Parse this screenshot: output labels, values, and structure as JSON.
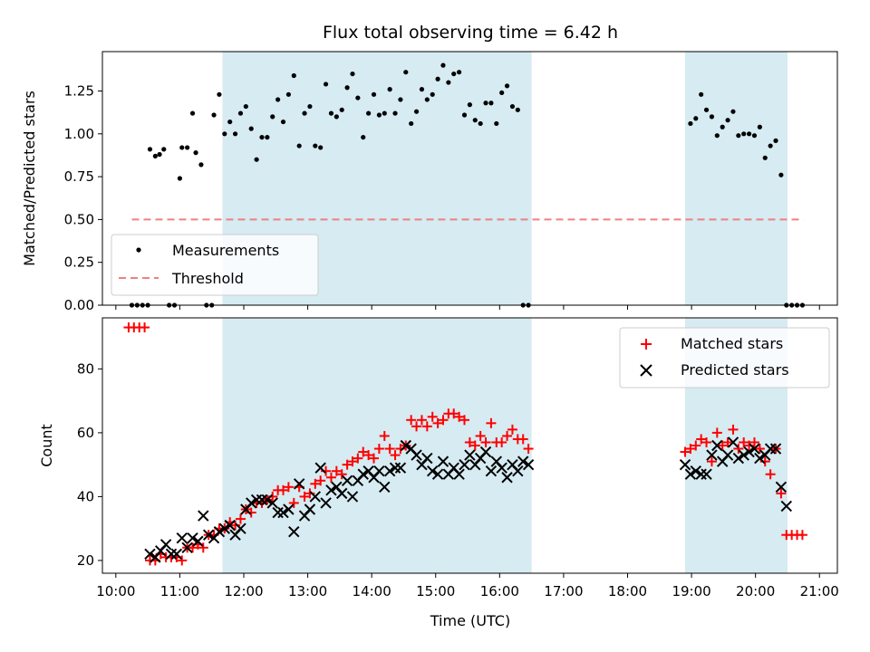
{
  "chart_data": {
    "type": "scatter",
    "title": "Flux total observing time = 6.42 h",
    "xlabel": "Time (UTC)",
    "x_ticks": [
      "10:00",
      "11:00",
      "12:00",
      "13:00",
      "14:00",
      "15:00",
      "16:00",
      "17:00",
      "18:00",
      "19:00",
      "20:00",
      "21:00"
    ],
    "xlim_hours": [
      9.79,
      21.28
    ],
    "shaded_intervals": [
      [
        "11:40",
        "16:30"
      ],
      [
        "18:54",
        "20:30"
      ]
    ],
    "shade_color": "#add8e6",
    "top": {
      "ylabel": "Matched/Predicted stars",
      "ylim": [
        0,
        1.48
      ],
      "y_ticks": [
        "0.00",
        "0.25",
        "0.50",
        "0.75",
        "1.00",
        "1.25"
      ],
      "threshold": 0.5,
      "threshold_color": "#f08080",
      "legend": {
        "position": "lower-left",
        "entries": [
          "Measurements",
          "Threshold"
        ]
      },
      "measurements": {
        "name": "Measurements",
        "color": "#000000",
        "x": [
          "10:15",
          "10:20",
          "10:25",
          "10:30",
          "10:32",
          "10:37",
          "10:41",
          "10:45",
          "10:50",
          "10:55",
          "11:00",
          "11:02",
          "11:07",
          "11:12",
          "11:15",
          "11:20",
          "11:25",
          "11:30",
          "11:32",
          "11:37",
          "11:42",
          "11:47",
          "11:52",
          "11:57",
          "12:02",
          "12:07",
          "12:12",
          "12:17",
          "12:22",
          "12:27",
          "12:32",
          "12:37",
          "12:42",
          "12:47",
          "12:52",
          "12:57",
          "13:02",
          "13:07",
          "13:12",
          "13:17",
          "13:22",
          "13:27",
          "13:32",
          "13:37",
          "13:42",
          "13:47",
          "13:52",
          "13:57",
          "14:02",
          "14:07",
          "14:12",
          "14:17",
          "14:22",
          "14:27",
          "14:32",
          "14:37",
          "14:42",
          "14:47",
          "14:52",
          "14:57",
          "15:02",
          "15:07",
          "15:12",
          "15:17",
          "15:22",
          "15:27",
          "15:32",
          "15:37",
          "15:42",
          "15:47",
          "15:52",
          "15:57",
          "16:02",
          "16:07",
          "16:12",
          "16:17",
          "16:22",
          "16:27",
          "18:59",
          "19:04",
          "19:09",
          "19:14",
          "19:19",
          "19:24",
          "19:29",
          "19:34",
          "19:39",
          "19:44",
          "19:49",
          "19:54",
          "19:59",
          "20:04",
          "20:09",
          "20:14",
          "20:19",
          "20:24",
          "20:29",
          "20:34",
          "20:39",
          "20:44"
        ],
        "y": [
          0.0,
          0.0,
          0.0,
          0.0,
          0.91,
          0.87,
          0.88,
          0.91,
          0.0,
          0.0,
          0.74,
          0.92,
          0.92,
          1.12,
          0.89,
          0.82,
          0.0,
          0.0,
          1.11,
          1.23,
          1.0,
          1.07,
          1.0,
          1.12,
          1.16,
          1.03,
          0.85,
          0.98,
          0.98,
          1.1,
          1.2,
          1.07,
          1.23,
          1.34,
          0.93,
          1.12,
          1.16,
          0.93,
          0.92,
          1.29,
          1.12,
          1.1,
          1.14,
          1.27,
          1.35,
          1.21,
          0.98,
          1.12,
          1.23,
          1.11,
          1.12,
          1.26,
          1.12,
          1.2,
          1.36,
          1.06,
          1.13,
          1.26,
          1.2,
          1.23,
          1.32,
          1.4,
          1.3,
          1.35,
          1.36,
          1.11,
          1.17,
          1.08,
          1.06,
          1.18,
          1.18,
          1.06,
          1.24,
          1.28,
          1.16,
          1.14,
          0.0,
          0.0,
          1.06,
          1.09,
          1.23,
          1.14,
          1.1,
          0.99,
          1.04,
          1.08,
          1.13,
          0.99,
          1.0,
          1.0,
          0.99,
          1.04,
          0.86,
          0.93,
          0.96,
          0.76,
          0.0,
          0.0,
          0.0,
          0.0
        ]
      }
    },
    "bottom": {
      "ylabel": "Count",
      "ylim": [
        16,
        96
      ],
      "y_ticks": [
        "20",
        "40",
        "60",
        "80"
      ],
      "legend": {
        "position": "top-right",
        "entries": [
          "Matched stars",
          "Predicted stars"
        ]
      },
      "series": [
        {
          "name": "Matched stars",
          "marker": "plus",
          "color": "#ff0000",
          "x": [
            "10:12",
            "10:17",
            "10:22",
            "10:27",
            "10:32",
            "10:37",
            "10:42",
            "10:47",
            "10:52",
            "10:57",
            "11:02",
            "11:07",
            "11:12",
            "11:17",
            "11:22",
            "11:27",
            "11:32",
            "11:37",
            "11:42",
            "11:47",
            "11:52",
            "11:57",
            "12:02",
            "12:07",
            "12:12",
            "12:17",
            "12:22",
            "12:27",
            "12:32",
            "12:37",
            "12:42",
            "12:47",
            "12:52",
            "12:57",
            "13:02",
            "13:07",
            "13:12",
            "13:17",
            "13:22",
            "13:27",
            "13:32",
            "13:37",
            "13:42",
            "13:47",
            "13:52",
            "13:57",
            "14:02",
            "14:07",
            "14:12",
            "14:17",
            "14:22",
            "14:27",
            "14:32",
            "14:37",
            "14:42",
            "14:47",
            "14:52",
            "14:57",
            "15:02",
            "15:07",
            "15:12",
            "15:17",
            "15:22",
            "15:27",
            "15:32",
            "15:37",
            "15:42",
            "15:47",
            "15:52",
            "15:57",
            "16:02",
            "16:07",
            "16:12",
            "16:17",
            "16:22",
            "16:27",
            "18:54",
            "18:59",
            "19:04",
            "19:09",
            "19:14",
            "19:19",
            "19:24",
            "19:29",
            "19:34",
            "19:39",
            "19:44",
            "19:49",
            "19:54",
            "19:59",
            "20:04",
            "20:09",
            "20:14",
            "20:19",
            "20:24",
            "20:29",
            "20:34",
            "20:39",
            "20:44"
          ],
          "y": [
            93,
            93,
            93,
            93,
            20,
            20,
            22,
            21,
            21,
            21,
            20,
            24,
            24,
            25,
            24,
            28,
            28,
            30,
            30,
            32,
            31,
            33,
            36,
            35,
            38,
            38,
            39,
            40,
            42,
            42,
            43,
            38,
            43,
            40,
            41,
            44,
            45,
            48,
            46,
            48,
            47,
            50,
            51,
            52,
            54,
            53,
            52,
            55,
            59,
            55,
            53,
            55,
            56,
            64,
            62,
            64,
            62,
            65,
            63,
            64,
            66,
            66,
            65,
            64,
            57,
            56,
            59,
            57,
            63,
            57,
            57,
            59,
            61,
            58,
            58,
            55,
            54,
            55,
            56,
            58,
            57,
            51,
            60,
            56,
            57,
            61,
            55,
            57,
            56,
            57,
            55,
            51,
            47,
            55,
            41,
            28,
            28,
            28,
            28
          ]
        },
        {
          "name": "Predicted stars",
          "marker": "x",
          "color": "#000000",
          "x": [
            "10:32",
            "10:37",
            "10:42",
            "10:47",
            "10:52",
            "10:57",
            "11:02",
            "11:07",
            "11:12",
            "11:17",
            "11:22",
            "11:27",
            "11:32",
            "11:37",
            "11:42",
            "11:47",
            "11:52",
            "11:57",
            "12:02",
            "12:07",
            "12:12",
            "12:17",
            "12:22",
            "12:27",
            "12:32",
            "12:37",
            "12:42",
            "12:47",
            "12:52",
            "12:57",
            "13:02",
            "13:07",
            "13:12",
            "13:17",
            "13:22",
            "13:27",
            "13:32",
            "13:37",
            "13:42",
            "13:47",
            "13:52",
            "13:57",
            "14:02",
            "14:07",
            "14:12",
            "14:17",
            "14:22",
            "14:27",
            "14:32",
            "14:37",
            "14:42",
            "14:47",
            "14:52",
            "14:57",
            "15:02",
            "15:07",
            "15:12",
            "15:17",
            "15:22",
            "15:27",
            "15:32",
            "15:37",
            "15:42",
            "15:47",
            "15:52",
            "15:57",
            "16:02",
            "16:07",
            "16:12",
            "16:17",
            "16:22",
            "16:27",
            "18:54",
            "18:59",
            "19:04",
            "19:09",
            "19:14",
            "19:19",
            "19:24",
            "19:29",
            "19:34",
            "19:39",
            "19:44",
            "19:49",
            "19:54",
            "19:59",
            "20:04",
            "20:09",
            "20:14",
            "20:19",
            "20:24",
            "20:29"
          ],
          "y": [
            22,
            21,
            23,
            25,
            22,
            22,
            27,
            24,
            27,
            26,
            34,
            28,
            27,
            29,
            30,
            31,
            28,
            30,
            36,
            38,
            39,
            39,
            39,
            38,
            35,
            35,
            36,
            29,
            44,
            34,
            36,
            40,
            49,
            38,
            42,
            43,
            41,
            45,
            40,
            45,
            47,
            48,
            46,
            48,
            43,
            48,
            49,
            49,
            56,
            55,
            53,
            50,
            52,
            48,
            47,
            51,
            47,
            49,
            47,
            50,
            53,
            50,
            52,
            54,
            48,
            51,
            49,
            46,
            50,
            48,
            51,
            50,
            50,
            47,
            48,
            47,
            47,
            53,
            56,
            51,
            53,
            57,
            52,
            53,
            54,
            55,
            52,
            53,
            55,
            55,
            43,
            37
          ]
        }
      ]
    }
  }
}
